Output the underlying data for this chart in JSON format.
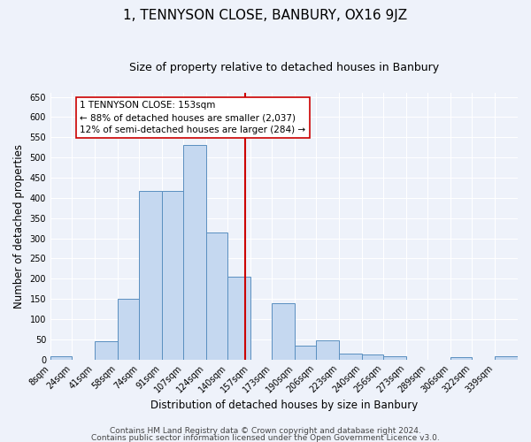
{
  "title": "1, TENNYSON CLOSE, BANBURY, OX16 9JZ",
  "subtitle": "Size of property relative to detached houses in Banbury",
  "xlabel": "Distribution of detached houses by size in Banbury",
  "ylabel": "Number of detached properties",
  "bin_labels": [
    "8sqm",
    "24sqm",
    "41sqm",
    "58sqm",
    "74sqm",
    "91sqm",
    "107sqm",
    "124sqm",
    "140sqm",
    "157sqm",
    "173sqm",
    "190sqm",
    "206sqm",
    "223sqm",
    "240sqm",
    "256sqm",
    "273sqm",
    "289sqm",
    "306sqm",
    "322sqm",
    "339sqm"
  ],
  "bin_edges": [
    8,
    24,
    41,
    58,
    74,
    91,
    107,
    124,
    140,
    157,
    173,
    190,
    206,
    223,
    240,
    256,
    273,
    289,
    306,
    322,
    339
  ],
  "bar_heights": [
    8,
    0,
    45,
    150,
    418,
    418,
    530,
    315,
    205,
    0,
    140,
    35,
    48,
    15,
    13,
    8,
    0,
    0,
    5,
    0,
    8
  ],
  "bar_color": "#c5d8f0",
  "bar_edge_color": "#5a8fc0",
  "vline_x": 153,
  "vline_color": "#cc0000",
  "annotation_title": "1 TENNYSON CLOSE: 153sqm",
  "annotation_line1": "← 88% of detached houses are smaller (2,037)",
  "annotation_line2": "12% of semi-detached houses are larger (284) →",
  "annotation_box_color": "#ffffff",
  "annotation_box_edge_color": "#cc0000",
  "ylim": [
    0,
    660
  ],
  "yticks": [
    0,
    50,
    100,
    150,
    200,
    250,
    300,
    350,
    400,
    450,
    500,
    550,
    600,
    650
  ],
  "footer1": "Contains HM Land Registry data © Crown copyright and database right 2024.",
  "footer2": "Contains public sector information licensed under the Open Government Licence v3.0.",
  "background_color": "#eef2fa",
  "grid_color": "#ffffff",
  "title_fontsize": 11,
  "subtitle_fontsize": 9,
  "axis_label_fontsize": 8.5,
  "tick_fontsize": 7,
  "footer_fontsize": 6.5,
  "annotation_fontsize": 7.5
}
